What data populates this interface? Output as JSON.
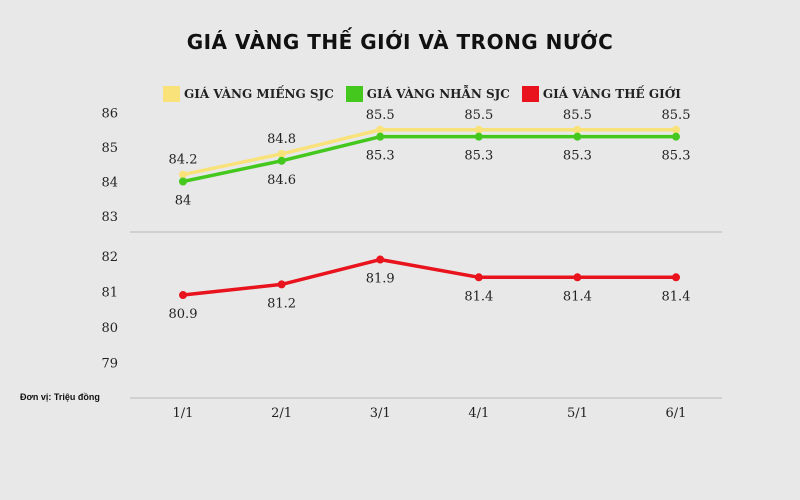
{
  "chart_data": {
    "type": "line",
    "title": "GIÁ VÀNG THẾ GIỚI VÀ TRONG NƯỚC",
    "unit_note": "Đơn vị: Triệu đồng",
    "categories": [
      "1/1",
      "2/1",
      "3/1",
      "4/1",
      "5/1",
      "6/1"
    ],
    "y_ticks_upper": [
      "83",
      "84",
      "85",
      "86"
    ],
    "y_ticks_lower": [
      "79",
      "80",
      "81",
      "82"
    ],
    "series": [
      {
        "name": "GIÁ VÀNG MIẾNG SJC",
        "color": "#f9e27a",
        "values": [
          84.2,
          84.8,
          85.5,
          85.5,
          85.5,
          85.5
        ],
        "labels": [
          "84.2",
          "84.8",
          "85.5",
          "85.5",
          "85.5",
          "85.5"
        ],
        "label_position": "above"
      },
      {
        "name": "GIÁ VÀNG NHẪN SJC",
        "color": "#45c81e",
        "values": [
          84,
          84.6,
          85.3,
          85.3,
          85.3,
          85.3
        ],
        "labels": [
          "84",
          "84.6",
          "85.3",
          "85.3",
          "85.3",
          "85.3"
        ],
        "label_position": "below"
      },
      {
        "name": "GIÁ VÀNG THẾ GIỚI",
        "color": "#e8131c",
        "values": [
          80.9,
          81.2,
          81.9,
          81.4,
          81.4,
          81.4
        ],
        "labels": [
          "80.9",
          "81.2",
          "81.9",
          "81.4",
          "81.4",
          "81.4"
        ],
        "label_position": "below"
      }
    ],
    "ylim": [
      79,
      86
    ],
    "axis_break": [
      82,
      83
    ],
    "grid": false,
    "legend_position": "top"
  }
}
